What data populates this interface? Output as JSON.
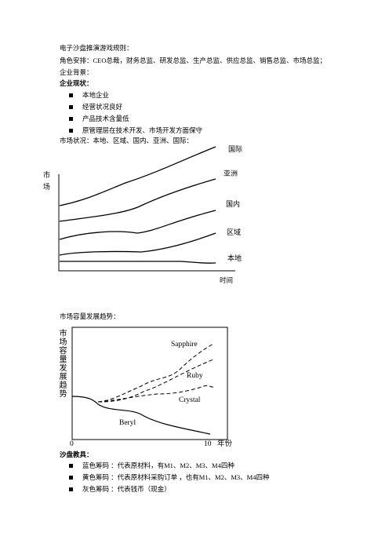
{
  "title": "电子沙盘推演游戏规则：",
  "roles": "角色安排：CEO总裁，财务总监、研发总监、生产总监、供应总监、销售总监、市场总监；",
  "background": "企业背景：",
  "status_heading": "企业现状：",
  "status_items": [
    "本地企业",
    "经营状况良好",
    "产品技术含量低",
    "原管理层在技术开发、市场开发方面保守"
  ],
  "market_status": "市场状况：本地、区域、国内、亚洲、国际：",
  "diagram1": {
    "y_label": "市场",
    "x_label": "时间",
    "series_labels": [
      "国际",
      "亚洲",
      "国内",
      "区域",
      "本地"
    ]
  },
  "trend_title": "市场容量发展趋势：",
  "diagram2": {
    "y_label": "市场容量发展趋势",
    "x_start": "0",
    "x_end": "10",
    "x_unit": "年份",
    "series_labels": [
      "Sapphire",
      "Ruby",
      "Crystal",
      "Beryl"
    ]
  },
  "tools_heading": "沙盘教具：",
  "tools_items": [
    "蓝色筹码 ：代表原材料，有M1、M2、M3、M4四种",
    "黄色筹码 ：代表原材料采购订单 ，也有M1、M2、M3、M4四种",
    "灰色筹码 ：代表钱币（现金）"
  ]
}
